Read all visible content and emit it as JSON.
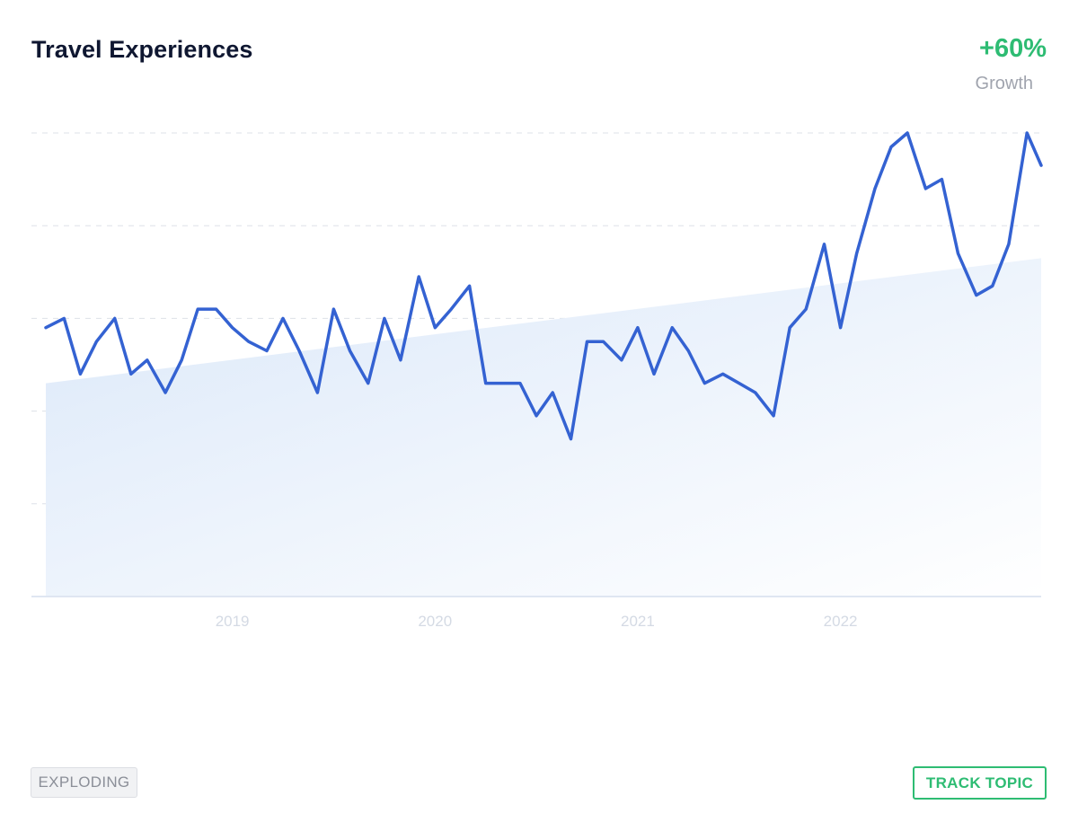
{
  "header": {
    "title": "Travel Experiences",
    "growth_value": "+60%",
    "growth_label": "Growth"
  },
  "footer": {
    "badge_label": "EXPLODING",
    "track_button_label": "TRACK TOPIC"
  },
  "colors": {
    "line": "#3462d2",
    "growth": "#2ebc73",
    "trend_fill_start": "#dbe8f9",
    "grid": "#dde1e8",
    "axis_label": "#d4dae4"
  },
  "chart_data": {
    "type": "line",
    "title": "Travel Experiences",
    "xlabel": "",
    "ylabel": "",
    "x_tick_labels": [
      "2019",
      "2020",
      "2021",
      "2022"
    ],
    "x_tick_positions": [
      2019.0,
      2020.0,
      2021.0,
      2022.0
    ],
    "x_range": [
      2018.08,
      2022.99
    ],
    "ylim": [
      0,
      100
    ],
    "grid": true,
    "legend": "none",
    "series": [
      {
        "x": [
          2018.08,
          2018.17,
          2018.25,
          2018.33,
          2018.42,
          2018.5,
          2018.58,
          2018.67,
          2018.75,
          2018.83,
          2018.92,
          2019.0,
          2019.08,
          2019.17,
          2019.25,
          2019.33,
          2019.42,
          2019.5,
          2019.58,
          2019.67,
          2019.75,
          2019.83,
          2019.92,
          2020.0,
          2020.08,
          2020.17,
          2020.25,
          2020.33,
          2020.42,
          2020.5,
          2020.58,
          2020.67,
          2020.75,
          2020.83,
          2020.92,
          2021.0,
          2021.08,
          2021.17,
          2021.25,
          2021.33,
          2021.42,
          2021.5,
          2021.58,
          2021.67,
          2021.75,
          2021.83,
          2021.92,
          2022.0,
          2022.08,
          2022.17,
          2022.25,
          2022.33,
          2022.42,
          2022.5,
          2022.58,
          2022.67,
          2022.75,
          2022.83,
          2022.92,
          2022.99
        ],
        "values": [
          58,
          60,
          48,
          55,
          60,
          48,
          51,
          44,
          51,
          62,
          62,
          58,
          55,
          53,
          60,
          53,
          44,
          62,
          53,
          46,
          60,
          51,
          69,
          58,
          62,
          67,
          46,
          46,
          46,
          39,
          44,
          34,
          55,
          55,
          51,
          58,
          48,
          58,
          53,
          46,
          48,
          46,
          44,
          39,
          58,
          62,
          76,
          58,
          74,
          88,
          97,
          100,
          88,
          90,
          74,
          65,
          67,
          76,
          100,
          93
        ]
      }
    ],
    "trend": {
      "start": 46,
      "end": 73
    }
  }
}
